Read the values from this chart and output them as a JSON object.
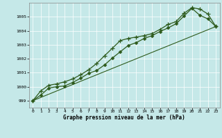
{
  "title": "Graphe pression niveau de la mer (hPa)",
  "background_color": "#c5e8e8",
  "line_color": "#2d5a1b",
  "xlim": [
    -0.5,
    23.5
  ],
  "ylim": [
    998.5,
    1006.0
  ],
  "yticks": [
    999,
    1000,
    1001,
    1002,
    1003,
    1004,
    1005
  ],
  "xticks": [
    0,
    1,
    2,
    3,
    4,
    5,
    6,
    7,
    8,
    9,
    10,
    11,
    12,
    13,
    14,
    15,
    16,
    17,
    18,
    19,
    20,
    21,
    22,
    23
  ],
  "series1_x": [
    0,
    1,
    2,
    3,
    4,
    5,
    6,
    7,
    8,
    9,
    10,
    11,
    12,
    13,
    14,
    15,
    16,
    17,
    18,
    19,
    20,
    21,
    22,
    23
  ],
  "series1_y": [
    999.0,
    999.7,
    1000.1,
    1000.2,
    1000.35,
    1000.55,
    1000.85,
    1001.2,
    1001.65,
    1002.2,
    1002.75,
    1003.3,
    1003.45,
    1003.55,
    1003.65,
    1003.8,
    1004.1,
    1004.45,
    1004.65,
    1005.25,
    1005.65,
    1005.55,
    1005.2,
    1004.3
  ],
  "series2_x": [
    0,
    1,
    2,
    3,
    4,
    5,
    6,
    7,
    8,
    9,
    10,
    11,
    12,
    13,
    14,
    15,
    16,
    17,
    18,
    19,
    20,
    21,
    22,
    23
  ],
  "series2_y": [
    999.0,
    999.4,
    999.9,
    1000.0,
    1000.05,
    1000.3,
    1000.6,
    1000.95,
    1001.15,
    1001.55,
    1002.05,
    1002.5,
    1002.95,
    1003.15,
    1003.45,
    1003.65,
    1003.95,
    1004.2,
    1004.5,
    1005.05,
    1005.6,
    1005.1,
    1004.85,
    1004.3
  ],
  "series3_x": [
    0,
    23
  ],
  "series3_y": [
    999.0,
    1004.3
  ]
}
